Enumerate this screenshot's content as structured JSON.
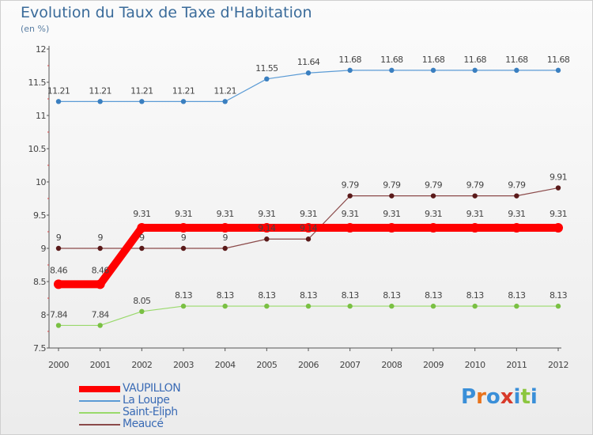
{
  "header": {
    "title": "Evolution du Taux de Taxe d'Habitation",
    "subtitle": "(en %)"
  },
  "logo": {
    "text": "Proxiti",
    "letters": [
      "P",
      "r",
      "o",
      "x",
      "i",
      "t",
      "i"
    ],
    "colors": [
      "#3a8fd8",
      "#e8731c",
      "#3a8fd8",
      "#d83a2a",
      "#3a8fd8",
      "#8cc63f",
      "#3a8fd8"
    ]
  },
  "chart_data": {
    "type": "line",
    "title": "Evolution du Taux de Taxe d'Habitation",
    "subtitle": "(en %)",
    "x": [
      "2000",
      "2001",
      "2002",
      "2003",
      "2004",
      "2005",
      "2006",
      "2007",
      "2008",
      "2009",
      "2010",
      "2011",
      "2012"
    ],
    "ylim": [
      7.5,
      12
    ],
    "yticks": [
      "7.5",
      "8",
      "8.5",
      "9",
      "9.5",
      "10",
      "10.5",
      "11",
      "11.5",
      "12"
    ],
    "grid": false,
    "legend_position": "bottom-left",
    "series": [
      {
        "name": "VAUPILLON",
        "color": "#ff0000",
        "values": [
          8.46,
          8.46,
          9.31,
          9.31,
          9.31,
          9.31,
          9.31,
          9.31,
          9.31,
          9.31,
          9.31,
          9.31,
          9.31
        ],
        "labels": [
          "8.46",
          "8.46",
          "9.31",
          "9.31",
          "9.31",
          "9.31",
          "9.31",
          "9.31",
          "9.31",
          "9.31",
          "9.31",
          "9.31",
          "9.31"
        ]
      },
      {
        "name": "La Loupe",
        "color": "#5b9bd5",
        "values": [
          11.21,
          11.21,
          11.21,
          11.21,
          11.21,
          11.55,
          11.64,
          11.68,
          11.68,
          11.68,
          11.68,
          11.68,
          11.68
        ],
        "labels": [
          "11.21",
          "11.21",
          "11.21",
          "11.21",
          "11.21",
          "11.55",
          "11.64",
          "11.68",
          "11.68",
          "11.68",
          "11.68",
          "11.68",
          "11.68"
        ]
      },
      {
        "name": "Saint-Eliph",
        "color": "#99d96b",
        "values": [
          7.84,
          7.84,
          8.05,
          8.13,
          8.13,
          8.13,
          8.13,
          8.13,
          8.13,
          8.13,
          8.13,
          8.13,
          8.13
        ],
        "labels": [
          "7.84",
          "7.84",
          "8.05",
          "8.13",
          "8.13",
          "8.13",
          "8.13",
          "8.13",
          "8.13",
          "8.13",
          "8.13",
          "8.13",
          "8.13"
        ]
      },
      {
        "name": "Meaucé",
        "color": "#8b4a4a",
        "values": [
          9,
          9,
          9,
          9,
          9,
          9.14,
          9.14,
          9.79,
          9.79,
          9.79,
          9.79,
          9.79,
          9.91
        ],
        "labels": [
          "9",
          "9",
          "9",
          "9",
          "9",
          "9.14",
          "9.14",
          "9.79",
          "9.79",
          "9.79",
          "9.79",
          "9.79",
          "9.91"
        ]
      }
    ]
  }
}
